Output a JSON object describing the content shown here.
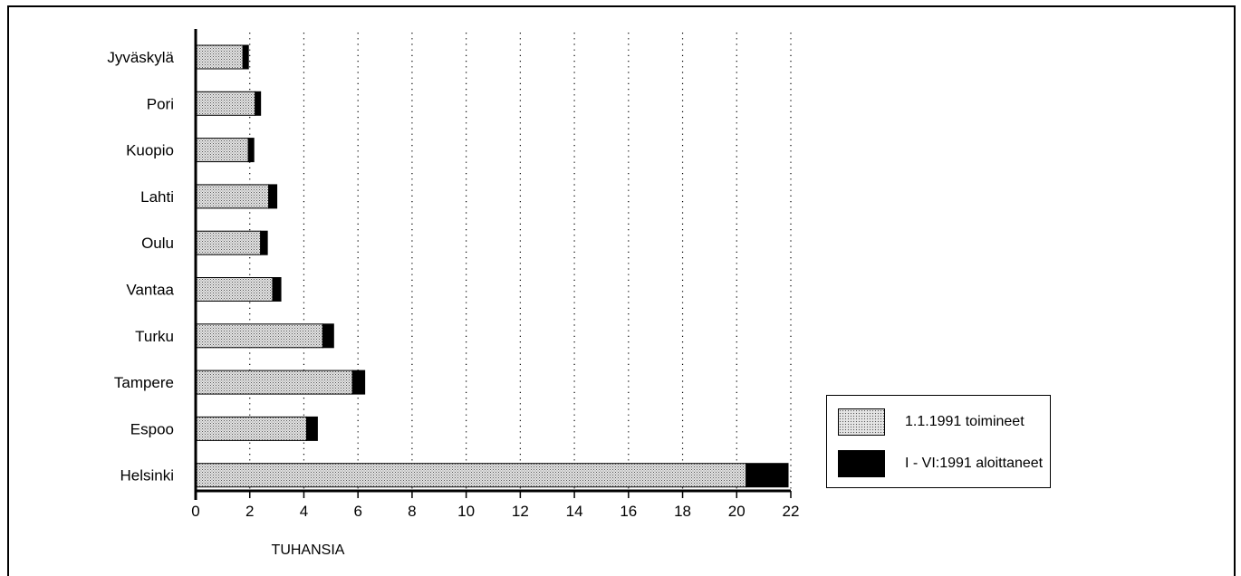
{
  "chart_data": {
    "type": "bar",
    "orientation": "horizontal",
    "stacked": true,
    "categories": [
      "Jyväskylä",
      "Pori",
      "Kuopio",
      "Lahti",
      "Oulu",
      "Vantaa",
      "Turku",
      "Tampere",
      "Espoo",
      "Helsinki"
    ],
    "series": [
      {
        "name": "1.1.1991 toimineet",
        "color": "#c9c9c9",
        "pattern": "dotted",
        "values": [
          1.75,
          2.2,
          1.95,
          2.7,
          2.4,
          2.85,
          4.7,
          5.8,
          4.1,
          20.35
        ]
      },
      {
        "name": "I - VI:1991 aloittaneet",
        "color": "#000000",
        "values": [
          0.2,
          0.2,
          0.2,
          0.3,
          0.25,
          0.3,
          0.4,
          0.45,
          0.4,
          1.55
        ]
      }
    ],
    "xlabel": "TUHANSIA",
    "ylabel": "",
    "xlim": [
      0,
      22
    ],
    "xticks": [
      0,
      2,
      4,
      6,
      8,
      10,
      12,
      14,
      16,
      18,
      20,
      22
    ],
    "grid": "vertical dotted",
    "legend": "right"
  },
  "legend": {
    "items": [
      {
        "label": "1.1.1991 toimineet",
        "swatch": "dotted"
      },
      {
        "label": "I - VI:1991 aloittaneet",
        "swatch": "solid"
      }
    ]
  }
}
